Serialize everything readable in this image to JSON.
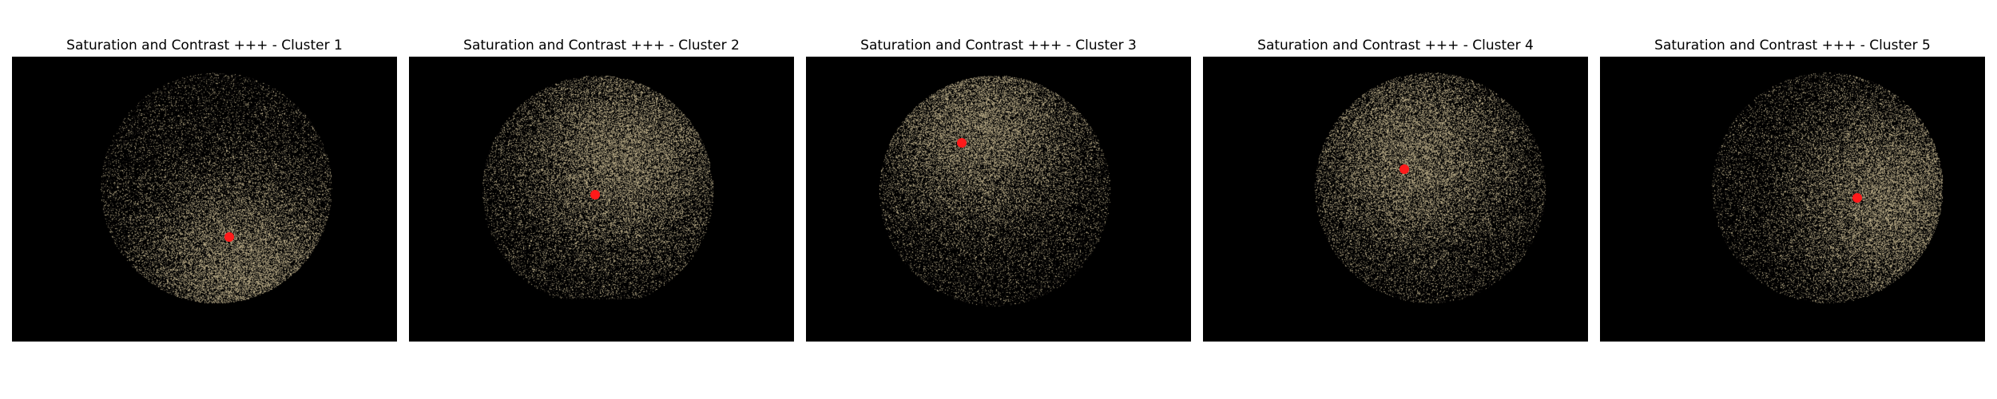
{
  "figure": {
    "panels": [
      {
        "title": "Saturation and Contrast +++ - Cluster 1",
        "centroid_marker": "red-dot",
        "centroid": [
          0.565,
          0.633
        ],
        "bright_region": [
          0.6,
          0.75
        ],
        "cluster_color": "#c8b992"
      },
      {
        "title": "Saturation and Contrast +++ - Cluster 2",
        "centroid_marker": "red-dot",
        "centroid": [
          0.483,
          0.485
        ],
        "bright_region": [
          0.55,
          0.35
        ],
        "cluster_color": "#c8b992"
      },
      {
        "title": "Saturation and Contrast +++ - Cluster 3",
        "centroid_marker": "red-dot",
        "centroid": [
          0.405,
          0.303
        ],
        "bright_region": [
          0.45,
          0.25
        ],
        "cluster_color": "#c8b992"
      },
      {
        "title": "Saturation and Contrast +++ - Cluster 4",
        "centroid_marker": "red-dot",
        "centroid": [
          0.522,
          0.394
        ],
        "bright_region": [
          0.55,
          0.35
        ],
        "cluster_color": "#c8b992"
      },
      {
        "title": "Saturation and Contrast +++ - Cluster 5",
        "centroid_marker": "red-dot",
        "centroid": [
          0.668,
          0.497
        ],
        "bright_region": [
          0.75,
          0.5
        ],
        "cluster_color": "#c8b992"
      }
    ],
    "colors": {
      "background": "#000000",
      "centroid": "#ff1a1a",
      "cluster": "#c8b992"
    }
  }
}
